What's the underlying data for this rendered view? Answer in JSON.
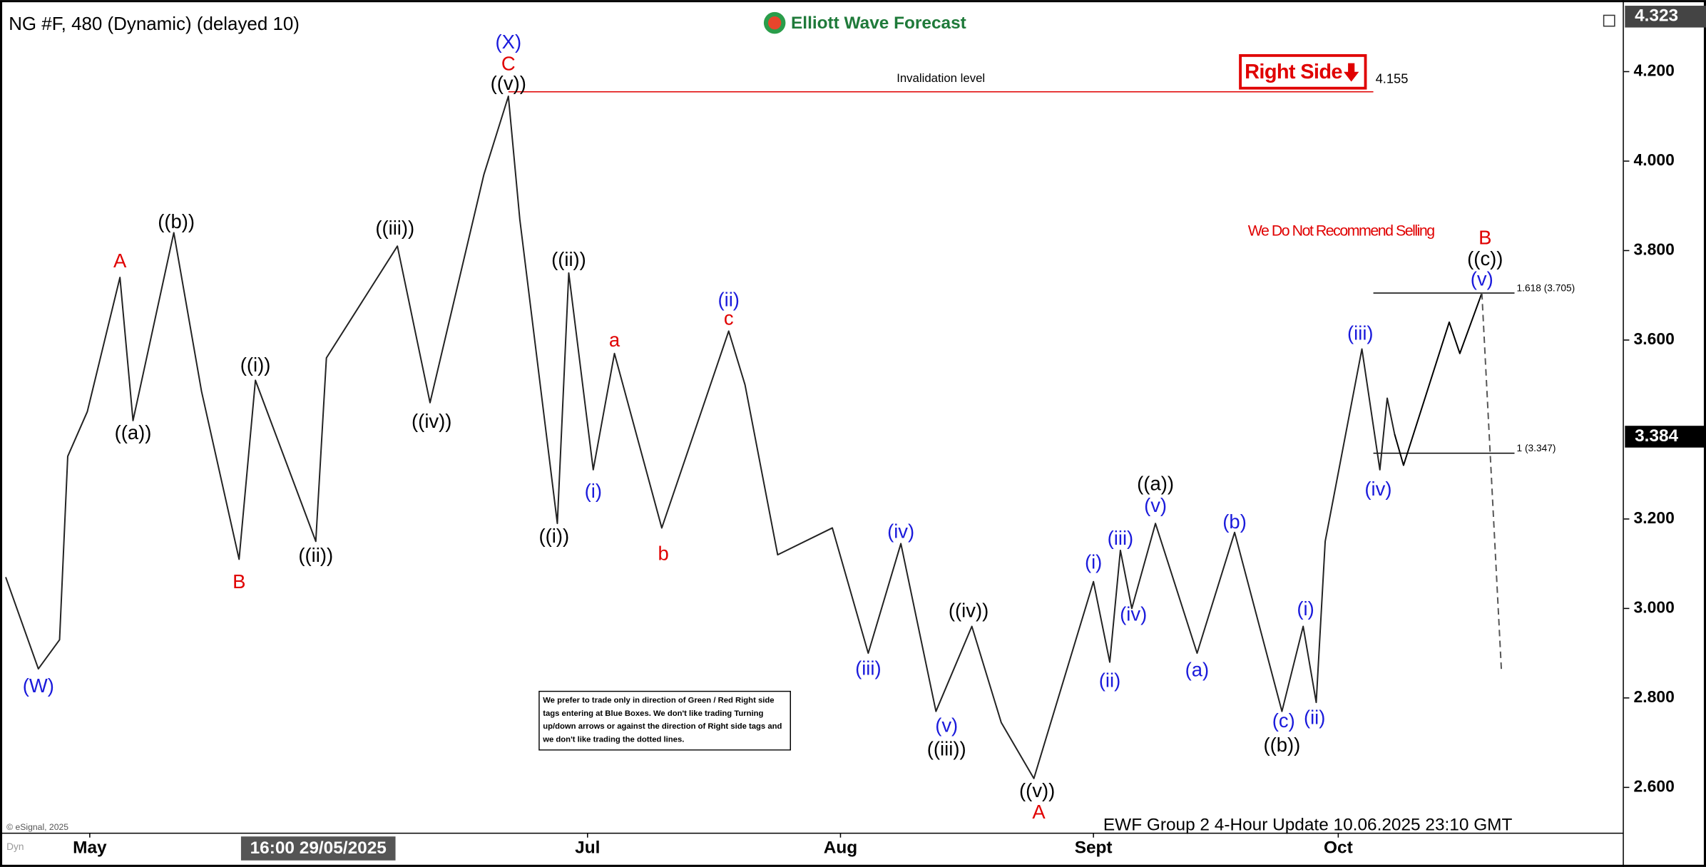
{
  "chart_data": {
    "type": "line",
    "title": "NG #F, 480 (Dynamic) (delayed 10)",
    "logo": "Elliott Wave Forecast",
    "copyright": "© eSignal, 2025",
    "corner": "Dyn",
    "footer": "EWF Group 2 4-Hour Update 10.06.2025 23:10 GMT",
    "side_tag": "Right Side",
    "warning": "We Do Not Recommend Selling",
    "note": "We prefer to trade only in direction of Green / Red Right side tags entering at Blue Boxes. We don't like trading Turning up/down arrows or against the direction of Right side tags and we don't like trading the dotted lines.",
    "crosshair": {
      "x": 149,
      "label": "16:00 29/05/2025"
    },
    "xlim": [
      110,
      309
    ],
    "xticks": [
      {
        "value": 121,
        "label": "May"
      },
      {
        "value": 182,
        "label": "Jul"
      },
      {
        "value": 213,
        "label": "Aug"
      },
      {
        "value": 244,
        "label": "Sept"
      },
      {
        "value": 274,
        "label": "Oct"
      }
    ],
    "ylim": [
      2.5,
      4.36
    ],
    "yticks": [
      {
        "value": 2.6,
        "label": "2.600"
      },
      {
        "value": 2.8,
        "label": "2.800"
      },
      {
        "value": 3.0,
        "label": "3.000"
      },
      {
        "value": 3.2,
        "label": "3.200"
      },
      {
        "value": 3.6,
        "label": "3.600"
      },
      {
        "value": 3.8,
        "label": "3.800"
      },
      {
        "value": 4.0,
        "label": "4.000"
      },
      {
        "value": 4.2,
        "label": "4.200"
      }
    ],
    "top_price": {
      "value": 4.323,
      "label": "4.323"
    },
    "last_price": {
      "value": 3.384,
      "label": "3.384"
    },
    "series": [
      {
        "color": "#222222",
        "dash": false,
        "x": [
          110.7,
          114.7,
          117.3,
          118.3,
          120.7,
          124.7,
          126.3,
          131.3,
          134.7,
          139.3,
          141.3,
          148.7,
          150,
          158.7,
          162.7,
          169.3,
          172.3,
          173.7,
          178.3,
          179.7,
          182.7,
          185.3,
          191.1,
          199.3,
          201.3,
          205.3,
          212,
          216.4,
          220.4,
          224.7,
          229.1,
          232.7,
          236.7,
          244,
          246,
          247.3,
          248.7,
          251.6,
          256.7,
          261.3,
          267.1,
          269.7,
          271.3,
          272.4,
          276.9,
          279.1,
          280,
          280.9
        ],
        "values": [
          3.07,
          2.865,
          2.93,
          3.34,
          3.44,
          3.74,
          3.42,
          3.84,
          3.485,
          3.11,
          3.51,
          3.15,
          3.56,
          3.81,
          3.46,
          3.97,
          4.145,
          3.87,
          3.19,
          3.75,
          3.31,
          3.57,
          3.18,
          3.62,
          3.5,
          3.12,
          3.18,
          2.9,
          3.145,
          2.77,
          2.96,
          2.745,
          2.62,
          3.06,
          2.88,
          3.13,
          3.0,
          3.19,
          2.9,
          3.17,
          2.77,
          2.96,
          2.79,
          3.15,
          3.58,
          3.31,
          3.47,
          3.39
        ]
      },
      {
        "color": "#000000",
        "dash": false,
        "x": [
          280.9,
          282,
          287.6,
          288.9,
          291.6
        ],
        "values": [
          3.39,
          3.32,
          3.64,
          3.57,
          3.705
        ]
      },
      {
        "color": "#555555",
        "dash": true,
        "x": [
          291.6,
          294
        ],
        "values": [
          3.705,
          2.86
        ]
      }
    ],
    "levels": [
      {
        "value": 4.155,
        "label": "4.155",
        "text": "Invalidation level",
        "x": [
          172.3,
          278.3
        ],
        "color": "#e00000"
      },
      {
        "value": 3.705,
        "label": "1.618 (3.705)",
        "x": [
          278.3,
          295.6
        ],
        "color": "#000000"
      },
      {
        "value": 3.347,
        "label": "1 (3.347)",
        "x": [
          278.3,
          295.6
        ],
        "color": "#000000"
      }
    ],
    "annotations": [
      {
        "text": "(X)",
        "x": 172.3,
        "y": 4.263,
        "color": "#1a1adb"
      },
      {
        "text": "C",
        "x": 172.3,
        "y": 4.215,
        "color": "#e00000"
      },
      {
        "text": "((v))",
        "x": 172.3,
        "y": 4.171,
        "color": "#000000"
      },
      {
        "text": "A",
        "x": 124.7,
        "y": 3.774,
        "color": "#e00000"
      },
      {
        "text": "((a))",
        "x": 126.3,
        "y": 3.39,
        "color": "#000000"
      },
      {
        "text": "((b))",
        "x": 131.6,
        "y": 3.862,
        "color": "#000000"
      },
      {
        "text": "(W)",
        "x": 114.7,
        "y": 2.824,
        "color": "#1a1adb"
      },
      {
        "text": "B",
        "x": 139.3,
        "y": 3.057,
        "color": "#e00000"
      },
      {
        "text": "((i))",
        "x": 141.3,
        "y": 3.541,
        "color": "#000000"
      },
      {
        "text": "((ii))",
        "x": 148.7,
        "y": 3.116,
        "color": "#000000"
      },
      {
        "text": "((iii))",
        "x": 158.4,
        "y": 3.847,
        "color": "#000000"
      },
      {
        "text": "((iv))",
        "x": 162.9,
        "y": 3.415,
        "color": "#000000"
      },
      {
        "text": "((i))",
        "x": 177.9,
        "y": 3.159,
        "color": "#000000"
      },
      {
        "text": "((ii))",
        "x": 179.7,
        "y": 3.777,
        "color": "#000000"
      },
      {
        "text": "(i)",
        "x": 182.7,
        "y": 3.259,
        "color": "#1a1adb"
      },
      {
        "text": "a",
        "x": 185.3,
        "y": 3.597,
        "color": "#e00000"
      },
      {
        "text": "b",
        "x": 191.3,
        "y": 3.12,
        "color": "#e00000"
      },
      {
        "text": "(ii)",
        "x": 199.3,
        "y": 3.687,
        "color": "#1a1adb"
      },
      {
        "text": "c",
        "x": 199.3,
        "y": 3.646,
        "color": "#e00000"
      },
      {
        "text": "(iv)",
        "x": 220.4,
        "y": 3.169,
        "color": "#1a1adb"
      },
      {
        "text": "(iii)",
        "x": 216.4,
        "y": 2.863,
        "color": "#1a1adb"
      },
      {
        "text": "(v)",
        "x": 226,
        "y": 2.736,
        "color": "#1a1adb"
      },
      {
        "text": "((iii))",
        "x": 226,
        "y": 2.683,
        "color": "#000000"
      },
      {
        "text": "((iv))",
        "x": 228.7,
        "y": 2.992,
        "color": "#000000"
      },
      {
        "text": "((v))",
        "x": 237.1,
        "y": 2.59,
        "color": "#000000"
      },
      {
        "text": "A",
        "x": 237.3,
        "y": 2.542,
        "color": "#e00000"
      },
      {
        "text": "(i)",
        "x": 244,
        "y": 3.101,
        "color": "#1a1adb"
      },
      {
        "text": "(ii)",
        "x": 246,
        "y": 2.836,
        "color": "#1a1adb"
      },
      {
        "text": "(iii)",
        "x": 247.3,
        "y": 3.154,
        "color": "#1a1adb"
      },
      {
        "text": "(iv)",
        "x": 248.9,
        "y": 2.984,
        "color": "#1a1adb"
      },
      {
        "text": "(v)",
        "x": 251.6,
        "y": 3.227,
        "color": "#1a1adb"
      },
      {
        "text": "((a))",
        "x": 251.6,
        "y": 3.276,
        "color": "#000000"
      },
      {
        "text": "(a)",
        "x": 256.7,
        "y": 2.86,
        "color": "#1a1adb"
      },
      {
        "text": "(b)",
        "x": 261.3,
        "y": 3.191,
        "color": "#1a1adb"
      },
      {
        "text": "(c)",
        "x": 267.3,
        "y": 2.746,
        "color": "#1a1adb"
      },
      {
        "text": "((b))",
        "x": 267.1,
        "y": 2.692,
        "color": "#000000"
      },
      {
        "text": "(i)",
        "x": 270,
        "y": 2.996,
        "color": "#1a1adb"
      },
      {
        "text": "(ii)",
        "x": 271.1,
        "y": 2.753,
        "color": "#1a1adb"
      },
      {
        "text": "(iii)",
        "x": 276.7,
        "y": 3.612,
        "color": "#1a1adb"
      },
      {
        "text": "(iv)",
        "x": 278.9,
        "y": 3.264,
        "color": "#1a1adb"
      },
      {
        "text": "(v)",
        "x": 291.6,
        "y": 3.733,
        "color": "#1a1adb"
      },
      {
        "text": "((c))",
        "x": 292,
        "y": 3.779,
        "color": "#000000"
      },
      {
        "text": "B",
        "x": 292,
        "y": 3.826,
        "color": "#e00000"
      }
    ]
  }
}
